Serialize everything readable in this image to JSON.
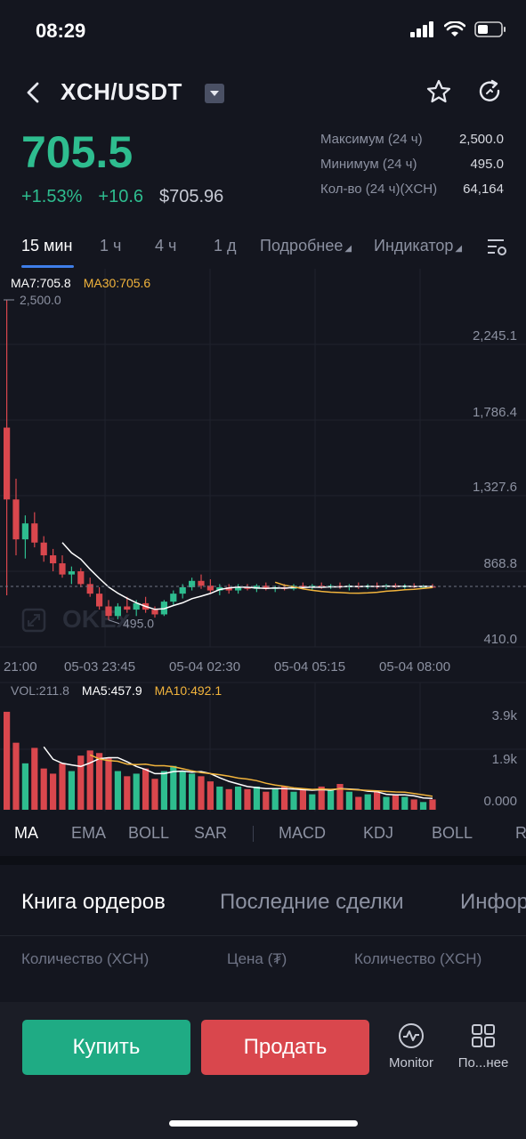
{
  "status": {
    "time": "08:29"
  },
  "header": {
    "pair": "XCH/USDT"
  },
  "price": {
    "last": "705.5",
    "change_pct": "+1.53%",
    "change_abs": "+10.6",
    "fiat": "$705.96"
  },
  "stats": [
    {
      "label": "Максимум (24 ч)",
      "value": "2,500.0"
    },
    {
      "label": "Минимум (24 ч)",
      "value": "495.0"
    },
    {
      "label": "Кол-во (24 ч)(XCH)",
      "value": "64,164"
    }
  ],
  "tabs": {
    "t15m": "15 мин",
    "t1h": "1 ч",
    "t4h": "4 ч",
    "t1d": "1 д",
    "more": "Подробнее",
    "indicator": "Индикатор"
  },
  "legend": {
    "ma7": "MA7:705.8",
    "ma30": "MA30:705.6",
    "vol": "VOL:211.8",
    "ma5": "MA5:457.9",
    "ma10": "MA10:492.1"
  },
  "colors": {
    "up": "#2ebd8f",
    "down": "#d9474d",
    "ma_short": "#ffffff",
    "ma_long": "#f2b43c",
    "accent": "#3f7ee8"
  },
  "chart_data": {
    "type": "candlestick",
    "price_axis": [
      "2,245.1",
      "1,786.4",
      "1,327.6",
      "868.8",
      "410.0"
    ],
    "high_label": "2,500.0",
    "low_label": "495.0",
    "time_axis": [
      "21:00",
      "05-03 23:45",
      "05-04 02:30",
      "05-04 05:15",
      "05-04 08:00"
    ],
    "watermark": "OKEx",
    "vol_axis": [
      "3.9k",
      "1.9k",
      "0.000"
    ],
    "ylim": [
      410,
      2500
    ],
    "vol_ylim": [
      0,
      3900
    ],
    "last_price": 705.5,
    "candles": [
      [
        1700,
        2500,
        650,
        1250,
        3800
      ],
      [
        1250,
        1380,
        900,
        1000,
        2600
      ],
      [
        1000,
        1150,
        880,
        1100,
        1800
      ],
      [
        1100,
        1170,
        950,
        980,
        2400
      ],
      [
        980,
        1020,
        860,
        900,
        1600
      ],
      [
        900,
        940,
        800,
        850,
        1400
      ],
      [
        850,
        900,
        760,
        780,
        1800
      ],
      [
        780,
        830,
        720,
        800,
        1500
      ],
      [
        800,
        820,
        700,
        720,
        2100
      ],
      [
        720,
        760,
        640,
        660,
        2300
      ],
      [
        660,
        700,
        560,
        580,
        2200
      ],
      [
        580,
        620,
        495,
        520,
        2000
      ],
      [
        520,
        600,
        500,
        580,
        1500
      ],
      [
        580,
        640,
        540,
        560,
        1300
      ],
      [
        560,
        620,
        520,
        600,
        1400
      ],
      [
        600,
        640,
        540,
        560,
        1600
      ],
      [
        560,
        580,
        510,
        530,
        1200
      ],
      [
        530,
        620,
        520,
        610,
        1500
      ],
      [
        610,
        680,
        590,
        660,
        1700
      ],
      [
        660,
        720,
        630,
        700,
        1500
      ],
      [
        700,
        760,
        680,
        740,
        1400
      ],
      [
        740,
        780,
        690,
        710,
        1300
      ],
      [
        710,
        750,
        660,
        680,
        1100
      ],
      [
        680,
        720,
        650,
        700,
        900
      ],
      [
        700,
        720,
        660,
        680,
        800
      ],
      [
        680,
        720,
        660,
        700,
        900
      ],
      [
        700,
        720,
        680,
        690,
        800
      ],
      [
        690,
        720,
        670,
        710,
        900
      ],
      [
        710,
        730,
        680,
        690,
        700
      ],
      [
        690,
        710,
        670,
        700,
        800
      ],
      [
        700,
        720,
        680,
        690,
        900
      ],
      [
        690,
        720,
        680,
        710,
        700
      ],
      [
        710,
        730,
        690,
        700,
        800
      ],
      [
        700,
        720,
        680,
        710,
        600
      ],
      [
        710,
        730,
        690,
        700,
        900
      ],
      [
        700,
        720,
        690,
        710,
        800
      ],
      [
        710,
        730,
        690,
        700,
        1000
      ],
      [
        700,
        720,
        680,
        710,
        700
      ],
      [
        710,
        730,
        690,
        700,
        500
      ],
      [
        700,
        720,
        690,
        710,
        600
      ],
      [
        710,
        730,
        690,
        705,
        700
      ],
      [
        705,
        720,
        690,
        712,
        500
      ],
      [
        712,
        725,
        695,
        700,
        600
      ],
      [
        700,
        720,
        690,
        708,
        500
      ],
      [
        708,
        725,
        695,
        700,
        400
      ],
      [
        700,
        715,
        690,
        706,
        300
      ],
      [
        706,
        720,
        695,
        705,
        400
      ]
    ]
  },
  "indicators": {
    "ma": "MA",
    "ema": "EMA",
    "boll": "BOLL",
    "sar": "SAR",
    "macd": "MACD",
    "kdj": "KDJ",
    "boll2": "BOLL",
    "r": "R"
  },
  "book": {
    "tab_orders": "Книга ордеров",
    "tab_trades": "Последние сделки",
    "tab_info": "Инфор",
    "col_qty_left": "Количество (XCH)",
    "col_price": "Цена (₮)",
    "col_qty_right": "Количество (XCH)"
  },
  "bottom": {
    "buy": "Купить",
    "sell": "Продать",
    "monitor": "Monitor",
    "more": "По...нее"
  }
}
